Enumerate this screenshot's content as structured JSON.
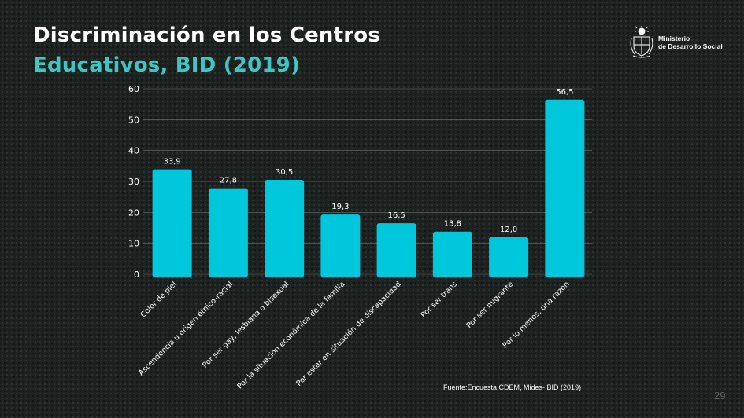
{
  "header": {
    "title_line1": "Discriminación en los Centros",
    "title_line2": "Educativos, BID (2019)"
  },
  "logo": {
    "line1": "Ministerio",
    "line2": "de Desarrollo Social"
  },
  "footer": {
    "source": "Fuente:Encuesta CDEM, Mides- BID (2019)",
    "page_number": "29"
  },
  "colors": {
    "bar": "#00c8dc",
    "accent": "#3fc6c3"
  },
  "chart_data": {
    "type": "bar",
    "title": "",
    "xlabel": "",
    "ylabel": "",
    "ylim": [
      0,
      60
    ],
    "yticks": [
      0,
      10,
      20,
      30,
      40,
      50,
      60
    ],
    "grid": true,
    "categories": [
      "Color de piel",
      "Ascendencia u origen étnico-racial",
      "Por ser gay, lesbiana o bisexual",
      "Por la situación económica de la familia",
      "Por estar en situación de discapacidad",
      "Por ser trans",
      "Por ser migrante",
      "Por lo menos, una razón"
    ],
    "values": [
      33.9,
      27.8,
      30.5,
      19.3,
      16.5,
      13.8,
      12.0,
      56.5
    ],
    "value_labels": [
      "33,9",
      "27,8",
      "30,5",
      "19,3",
      "16,5",
      "13,8",
      "12,0",
      "56,5"
    ]
  }
}
